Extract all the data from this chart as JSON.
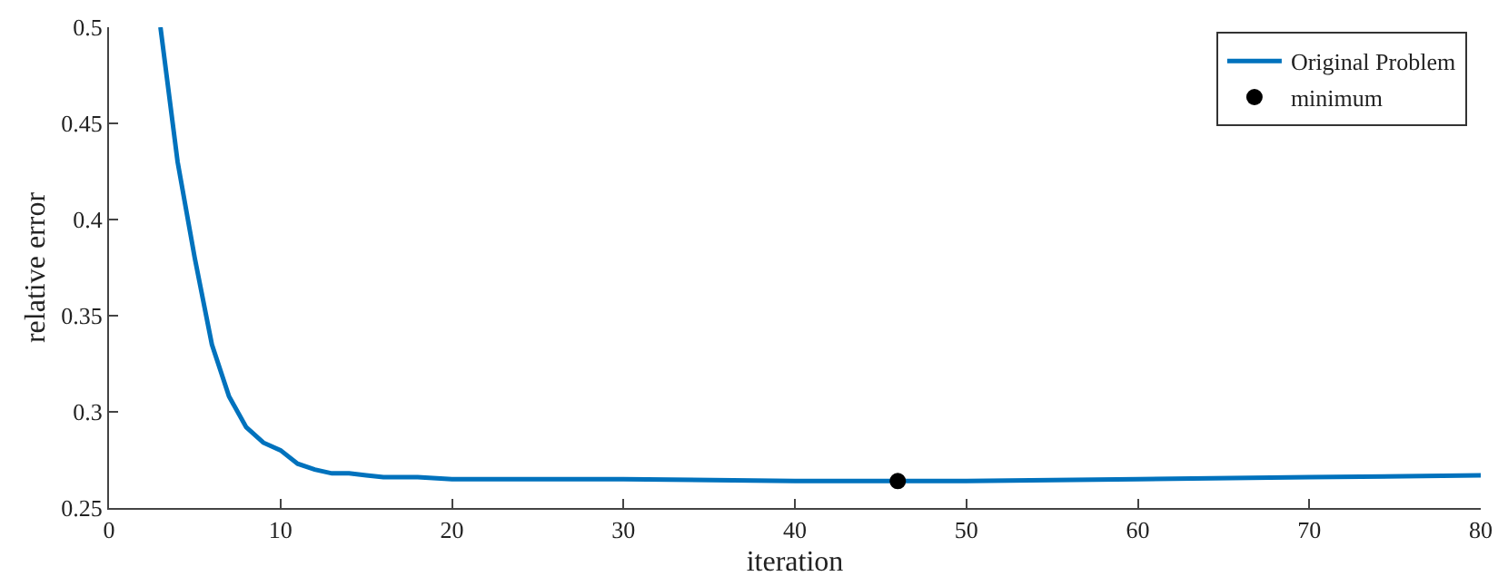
{
  "chart_data": {
    "type": "line",
    "xlabel": "iteration",
    "ylabel": "relative error",
    "xlim": [
      0,
      80
    ],
    "xticks": [
      0,
      10,
      20,
      30,
      40,
      50,
      60,
      70,
      80
    ],
    "ylim": [
      0.25,
      0.5
    ],
    "yticks": [
      0.25,
      0.3,
      0.35,
      0.4,
      0.45,
      0.5
    ],
    "grid": false,
    "legend": "top right",
    "series": [
      {
        "name": "Original Problem",
        "color": "#0072bd",
        "marker": "none",
        "x": [
          3,
          4,
          5,
          6,
          7,
          8,
          9,
          10,
          11,
          12,
          13,
          14,
          15,
          16,
          18,
          20,
          30,
          40,
          46,
          50,
          60,
          70,
          80
        ],
        "values": [
          0.5,
          0.43,
          0.38,
          0.335,
          0.308,
          0.292,
          0.284,
          0.28,
          0.273,
          0.27,
          0.268,
          0.268,
          0.267,
          0.266,
          0.266,
          0.265,
          0.265,
          0.264,
          0.264,
          0.264,
          0.265,
          0.266,
          0.267
        ]
      },
      {
        "name": "minimum",
        "type": "scatter",
        "color": "#000000",
        "marker": "circle",
        "x": [
          46
        ],
        "values": [
          0.264
        ]
      }
    ]
  }
}
